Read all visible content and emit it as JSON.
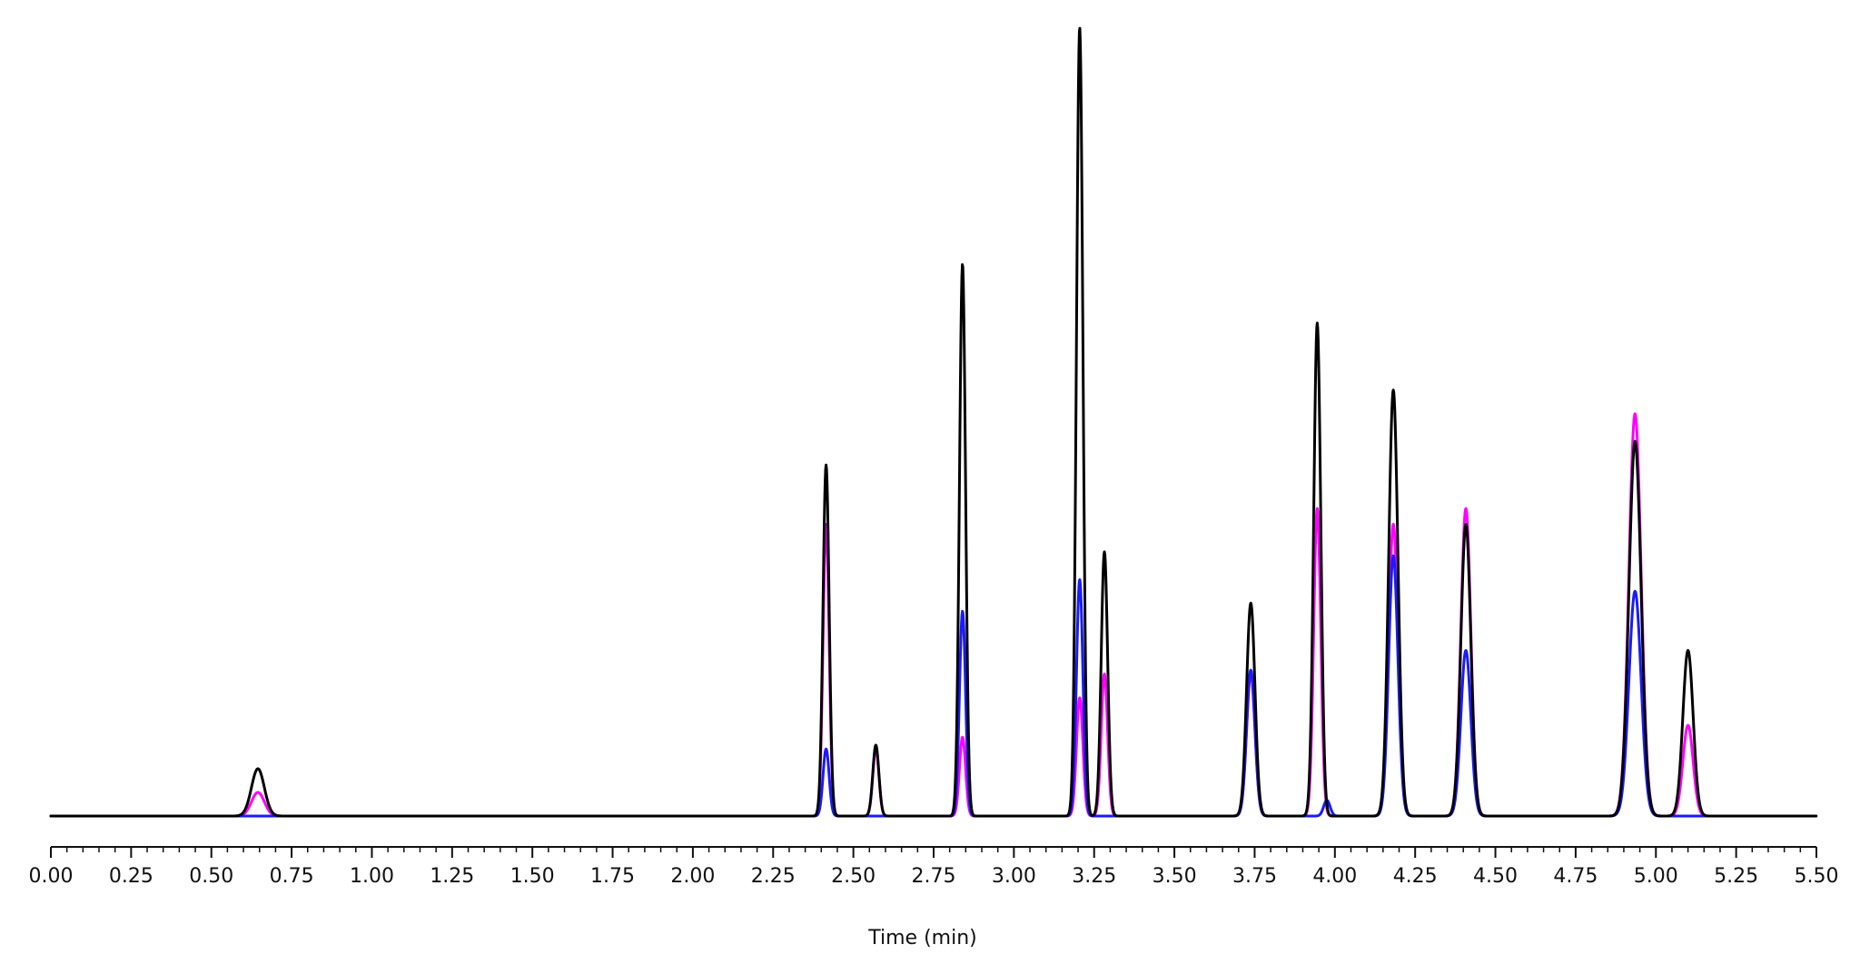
{
  "chart_data": {
    "type": "line",
    "title": "",
    "xlabel": "Time (min)",
    "ylabel": "",
    "xlim": [
      0.0,
      5.5
    ],
    "ylim": [
      0,
      100
    ],
    "grid": false,
    "legend": "none",
    "x_tick_labels": [
      "0.00",
      "0.25",
      "0.50",
      "0.75",
      "1.00",
      "1.25",
      "1.50",
      "1.75",
      "2.00",
      "2.25",
      "2.50",
      "2.75",
      "3.00",
      "3.25",
      "3.50",
      "3.75",
      "4.00",
      "4.25",
      "4.50",
      "4.75",
      "5.00",
      "5.25",
      "5.50"
    ],
    "series": [
      {
        "color": "#ff00ff",
        "peaks": [
          {
            "rt": 0.645,
            "height": 3.0,
            "width": 0.02
          },
          {
            "rt": 2.415,
            "height": 37.0,
            "width": 0.0095
          },
          {
            "rt": 2.57,
            "height": 8.5,
            "width": 0.0095
          },
          {
            "rt": 2.84,
            "height": 10.0,
            "width": 0.0095
          },
          {
            "rt": 3.205,
            "height": 15.0,
            "width": 0.01
          },
          {
            "rt": 3.282,
            "height": 18.0,
            "width": 0.01
          },
          {
            "rt": 3.738,
            "height": 18.0,
            "width": 0.013
          },
          {
            "rt": 3.945,
            "height": 39.0,
            "width": 0.011
          },
          {
            "rt": 4.182,
            "height": 37.0,
            "width": 0.0145
          },
          {
            "rt": 4.408,
            "height": 39.0,
            "width": 0.0155
          },
          {
            "rt": 4.935,
            "height": 51.0,
            "width": 0.019
          },
          {
            "rt": 5.1,
            "height": 11.5,
            "width": 0.016
          }
        ]
      },
      {
        "color": "#1a1aff",
        "peaks": [
          {
            "rt": 2.415,
            "height": 8.5,
            "width": 0.0095
          },
          {
            "rt": 2.84,
            "height": 26.0,
            "width": 0.0095
          },
          {
            "rt": 3.205,
            "height": 30.0,
            "width": 0.01
          },
          {
            "rt": 3.738,
            "height": 18.5,
            "width": 0.013
          },
          {
            "rt": 3.975,
            "height": 2.0,
            "width": 0.01
          },
          {
            "rt": 4.182,
            "height": 33.0,
            "width": 0.0145
          },
          {
            "rt": 4.408,
            "height": 21.0,
            "width": 0.0155
          },
          {
            "rt": 4.935,
            "height": 28.5,
            "width": 0.019
          }
        ]
      },
      {
        "color": "#000000",
        "peaks": [
          {
            "rt": 0.645,
            "height": 6.0,
            "width": 0.02
          },
          {
            "rt": 2.415,
            "height": 44.5,
            "width": 0.0095
          },
          {
            "rt": 2.57,
            "height": 9.0,
            "width": 0.0095
          },
          {
            "rt": 2.84,
            "height": 70.0,
            "width": 0.0095
          },
          {
            "rt": 3.205,
            "height": 100.0,
            "width": 0.01
          },
          {
            "rt": 3.282,
            "height": 33.5,
            "width": 0.01
          },
          {
            "rt": 3.738,
            "height": 27.0,
            "width": 0.013
          },
          {
            "rt": 3.945,
            "height": 62.5,
            "width": 0.011
          },
          {
            "rt": 4.182,
            "height": 54.0,
            "width": 0.0145
          },
          {
            "rt": 4.408,
            "height": 37.0,
            "width": 0.0155
          },
          {
            "rt": 4.935,
            "height": 47.5,
            "width": 0.019
          },
          {
            "rt": 5.1,
            "height": 21.0,
            "width": 0.016
          }
        ]
      }
    ]
  }
}
